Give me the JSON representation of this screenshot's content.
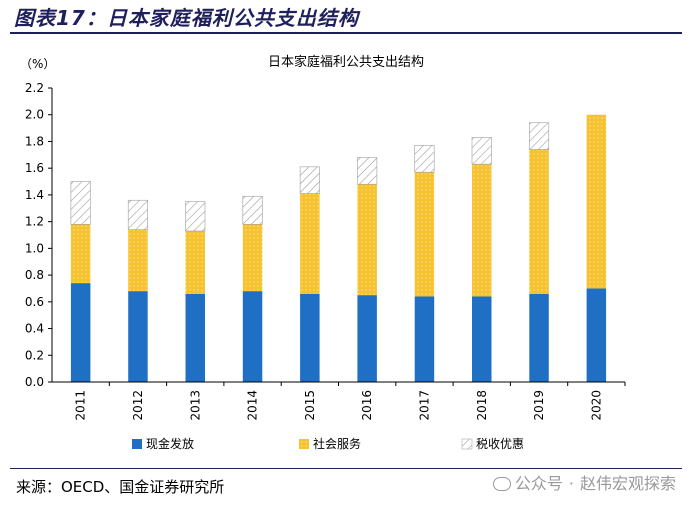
{
  "figure": {
    "title": "图表17：日本家庭福利公共支出结构",
    "source": "来源：OECD、国金证券研究所",
    "watermark": {
      "account": "公众号",
      "separator": "·",
      "name": "赵伟宏观探索"
    }
  },
  "colors": {
    "cash": "#1f6fc4",
    "services": "#f6c232",
    "services_dots": "#fbe27a",
    "tax": "#9e9e9e",
    "rule": "#1f1f5c"
  },
  "chart_data": {
    "type": "bar",
    "stacked": true,
    "title": "日本家庭福利公共支出结构",
    "ylabel": "（%）",
    "ylim": [
      0,
      2.2
    ],
    "ytick_step": 0.2,
    "yticks": [
      "0.0",
      "0.2",
      "0.4",
      "0.6",
      "0.8",
      "1.0",
      "1.2",
      "1.4",
      "1.6",
      "1.8",
      "2.0",
      "2.2"
    ],
    "categories": [
      "2011",
      "2012",
      "2013",
      "2014",
      "2015",
      "2016",
      "2017",
      "2018",
      "2019",
      "2020"
    ],
    "series": [
      {
        "name": "现金发放",
        "values": [
          0.74,
          0.68,
          0.66,
          0.68,
          0.66,
          0.65,
          0.64,
          0.64,
          0.66,
          0.7
        ]
      },
      {
        "name": "社会服务",
        "values": [
          0.44,
          0.46,
          0.47,
          0.5,
          0.75,
          0.83,
          0.93,
          0.99,
          1.08,
          1.3
        ]
      },
      {
        "name": "税收优惠",
        "values": [
          0.32,
          0.22,
          0.22,
          0.21,
          0.2,
          0.2,
          0.2,
          0.2,
          0.2,
          0.0
        ]
      }
    ],
    "legend_position": "bottom",
    "grid": false
  }
}
